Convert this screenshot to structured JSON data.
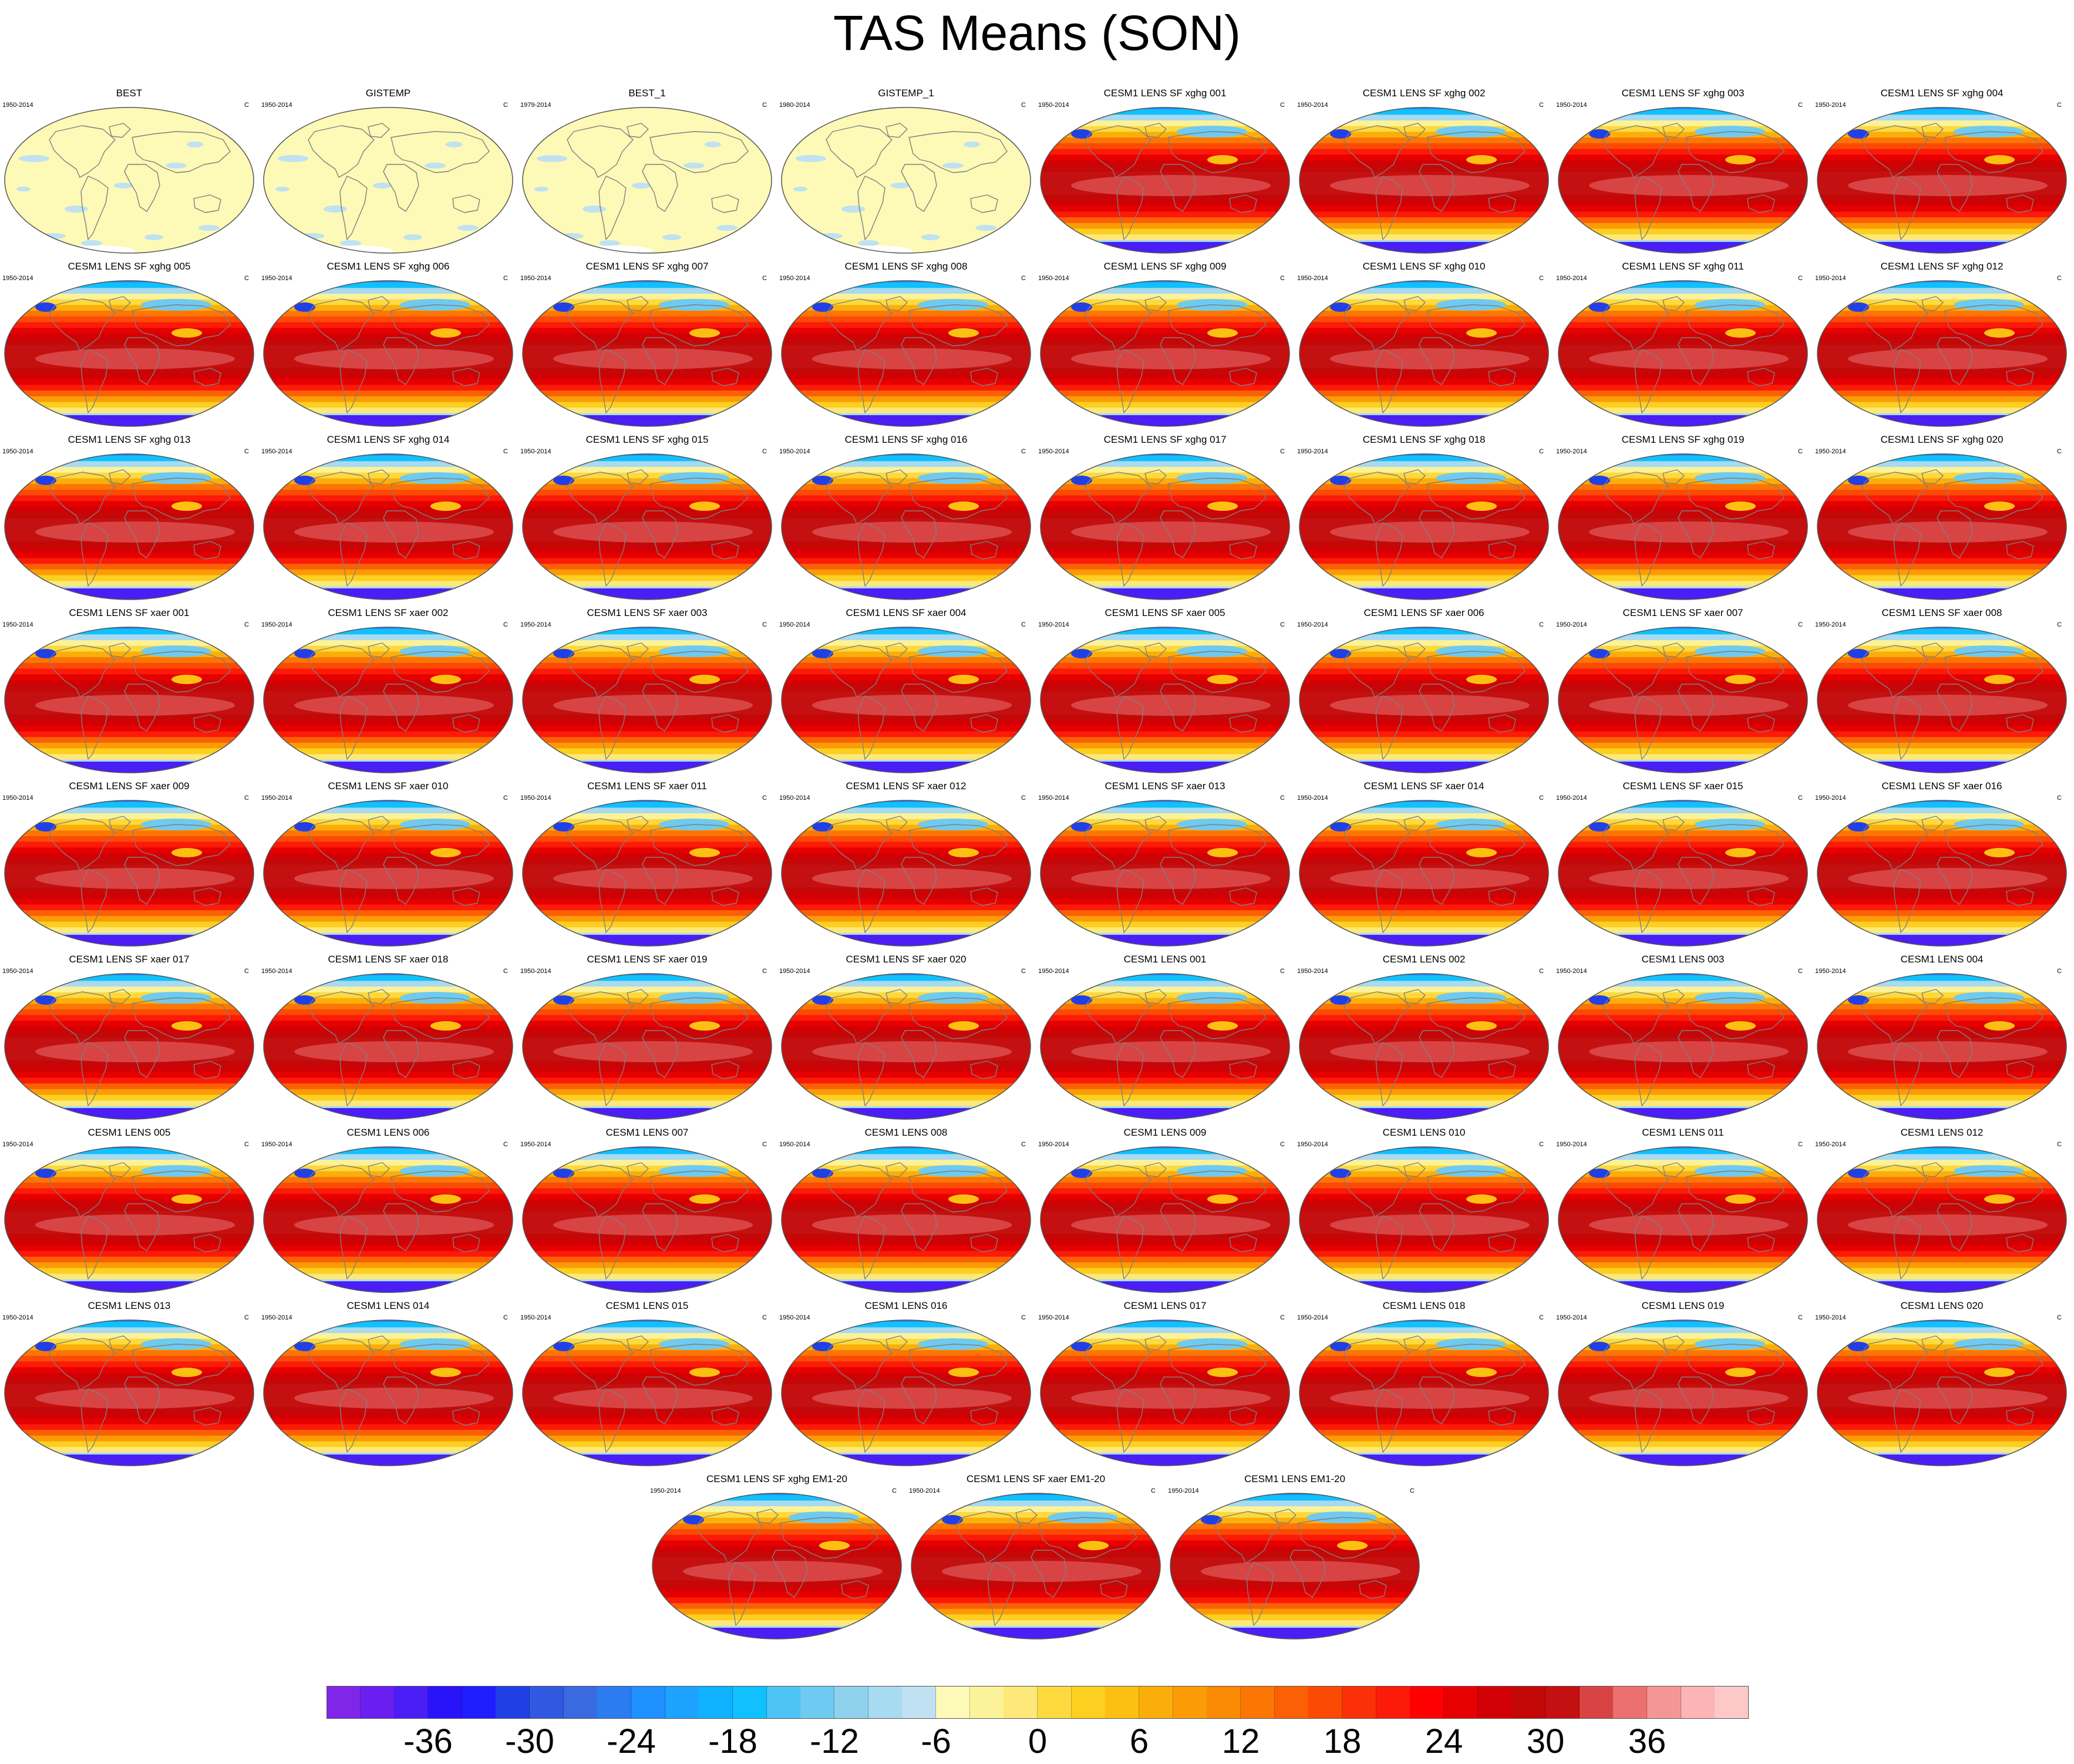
{
  "title": "TAS Means (SON)",
  "colors": {
    "obs_land": "#fdf9b6",
    "obs_hatch": "#bfe1f2",
    "coast": "#7f7f7f",
    "outline": "#555555"
  },
  "chart_data": {
    "type": "heatmap",
    "projection": "Robinson-like ellipse",
    "units": "C",
    "panels": [
      {
        "title": "BEST",
        "period": "1950-2014",
        "units": "C",
        "kind": "obs"
      },
      {
        "title": "GISTEMP",
        "period": "1950-2014",
        "units": "C",
        "kind": "obs"
      },
      {
        "title": "BEST_1",
        "period": "1979-2014",
        "units": "C",
        "kind": "obs"
      },
      {
        "title": "GISTEMP_1",
        "period": "1980-2014",
        "units": "C",
        "kind": "obs"
      },
      {
        "title": "CESM1 LENS SF xghg 001",
        "period": "1950-2014",
        "units": "C",
        "kind": "model"
      },
      {
        "title": "CESM1 LENS SF xghg 002",
        "period": "1950-2014",
        "units": "C",
        "kind": "model"
      },
      {
        "title": "CESM1 LENS SF xghg 003",
        "period": "1950-2014",
        "units": "C",
        "kind": "model"
      },
      {
        "title": "CESM1 LENS SF xghg 004",
        "period": "1950-2014",
        "units": "C",
        "kind": "model"
      },
      {
        "title": "CESM1 LENS SF xghg 005",
        "period": "1950-2014",
        "units": "C",
        "kind": "model"
      },
      {
        "title": "CESM1 LENS SF xghg 006",
        "period": "1950-2014",
        "units": "C",
        "kind": "model"
      },
      {
        "title": "CESM1 LENS SF xghg 007",
        "period": "1950-2014",
        "units": "C",
        "kind": "model"
      },
      {
        "title": "CESM1 LENS SF xghg 008",
        "period": "1950-2014",
        "units": "C",
        "kind": "model"
      },
      {
        "title": "CESM1 LENS SF xghg 009",
        "period": "1950-2014",
        "units": "C",
        "kind": "model"
      },
      {
        "title": "CESM1 LENS SF xghg 010",
        "period": "1950-2014",
        "units": "C",
        "kind": "model"
      },
      {
        "title": "CESM1 LENS SF xghg 011",
        "period": "1950-2014",
        "units": "C",
        "kind": "model"
      },
      {
        "title": "CESM1 LENS SF xghg 012",
        "period": "1950-2014",
        "units": "C",
        "kind": "model"
      },
      {
        "title": "CESM1 LENS SF xghg 013",
        "period": "1950-2014",
        "units": "C",
        "kind": "model"
      },
      {
        "title": "CESM1 LENS SF xghg 014",
        "period": "1950-2014",
        "units": "C",
        "kind": "model"
      },
      {
        "title": "CESM1 LENS SF xghg 015",
        "period": "1950-2014",
        "units": "C",
        "kind": "model"
      },
      {
        "title": "CESM1 LENS SF xghg 016",
        "period": "1950-2014",
        "units": "C",
        "kind": "model"
      },
      {
        "title": "CESM1 LENS SF xghg 017",
        "period": "1950-2014",
        "units": "C",
        "kind": "model"
      },
      {
        "title": "CESM1 LENS SF xghg 018",
        "period": "1950-2014",
        "units": "C",
        "kind": "model"
      },
      {
        "title": "CESM1 LENS SF xghg 019",
        "period": "1950-2014",
        "units": "C",
        "kind": "model"
      },
      {
        "title": "CESM1 LENS SF xghg 020",
        "period": "1950-2014",
        "units": "C",
        "kind": "model"
      },
      {
        "title": "CESM1 LENS SF xaer 001",
        "period": "1950-2014",
        "units": "C",
        "kind": "model"
      },
      {
        "title": "CESM1 LENS SF xaer 002",
        "period": "1950-2014",
        "units": "C",
        "kind": "model"
      },
      {
        "title": "CESM1 LENS SF xaer 003",
        "period": "1950-2014",
        "units": "C",
        "kind": "model"
      },
      {
        "title": "CESM1 LENS SF xaer 004",
        "period": "1950-2014",
        "units": "C",
        "kind": "model"
      },
      {
        "title": "CESM1 LENS SF xaer 005",
        "period": "1950-2014",
        "units": "C",
        "kind": "model"
      },
      {
        "title": "CESM1 LENS SF xaer 006",
        "period": "1950-2014",
        "units": "C",
        "kind": "model"
      },
      {
        "title": "CESM1 LENS SF xaer 007",
        "period": "1950-2014",
        "units": "C",
        "kind": "model"
      },
      {
        "title": "CESM1 LENS SF xaer 008",
        "period": "1950-2014",
        "units": "C",
        "kind": "model"
      },
      {
        "title": "CESM1 LENS SF xaer 009",
        "period": "1950-2014",
        "units": "C",
        "kind": "model"
      },
      {
        "title": "CESM1 LENS SF xaer 010",
        "period": "1950-2014",
        "units": "C",
        "kind": "model"
      },
      {
        "title": "CESM1 LENS SF xaer 011",
        "period": "1950-2014",
        "units": "C",
        "kind": "model"
      },
      {
        "title": "CESM1 LENS SF xaer 012",
        "period": "1950-2014",
        "units": "C",
        "kind": "model"
      },
      {
        "title": "CESM1 LENS SF xaer 013",
        "period": "1950-2014",
        "units": "C",
        "kind": "model"
      },
      {
        "title": "CESM1 LENS SF xaer 014",
        "period": "1950-2014",
        "units": "C",
        "kind": "model"
      },
      {
        "title": "CESM1 LENS SF xaer 015",
        "period": "1950-2014",
        "units": "C",
        "kind": "model"
      },
      {
        "title": "CESM1 LENS SF xaer 016",
        "period": "1950-2014",
        "units": "C",
        "kind": "model"
      },
      {
        "title": "CESM1 LENS SF xaer 017",
        "period": "1950-2014",
        "units": "C",
        "kind": "model"
      },
      {
        "title": "CESM1 LENS SF xaer 018",
        "period": "1950-2014",
        "units": "C",
        "kind": "model"
      },
      {
        "title": "CESM1 LENS SF xaer 019",
        "period": "1950-2014",
        "units": "C",
        "kind": "model"
      },
      {
        "title": "CESM1 LENS SF xaer 020",
        "period": "1950-2014",
        "units": "C",
        "kind": "model"
      },
      {
        "title": "CESM1 LENS 001",
        "period": "1950-2014",
        "units": "C",
        "kind": "model"
      },
      {
        "title": "CESM1 LENS 002",
        "period": "1950-2014",
        "units": "C",
        "kind": "model"
      },
      {
        "title": "CESM1 LENS 003",
        "period": "1950-2014",
        "units": "C",
        "kind": "model"
      },
      {
        "title": "CESM1 LENS 004",
        "period": "1950-2014",
        "units": "C",
        "kind": "model"
      },
      {
        "title": "CESM1 LENS 005",
        "period": "1950-2014",
        "units": "C",
        "kind": "model"
      },
      {
        "title": "CESM1 LENS 006",
        "period": "1950-2014",
        "units": "C",
        "kind": "model"
      },
      {
        "title": "CESM1 LENS 007",
        "period": "1950-2014",
        "units": "C",
        "kind": "model"
      },
      {
        "title": "CESM1 LENS 008",
        "period": "1950-2014",
        "units": "C",
        "kind": "model"
      },
      {
        "title": "CESM1 LENS 009",
        "period": "1950-2014",
        "units": "C",
        "kind": "model"
      },
      {
        "title": "CESM1 LENS 010",
        "period": "1950-2014",
        "units": "C",
        "kind": "model"
      },
      {
        "title": "CESM1 LENS 011",
        "period": "1950-2014",
        "units": "C",
        "kind": "model"
      },
      {
        "title": "CESM1 LENS 012",
        "period": "1950-2014",
        "units": "C",
        "kind": "model"
      },
      {
        "title": "CESM1 LENS 013",
        "period": "1950-2014",
        "units": "C",
        "kind": "model"
      },
      {
        "title": "CESM1 LENS 014",
        "period": "1950-2014",
        "units": "C",
        "kind": "model"
      },
      {
        "title": "CESM1 LENS 015",
        "period": "1950-2014",
        "units": "C",
        "kind": "model"
      },
      {
        "title": "CESM1 LENS 016",
        "period": "1950-2014",
        "units": "C",
        "kind": "model"
      },
      {
        "title": "CESM1 LENS 017",
        "period": "1950-2014",
        "units": "C",
        "kind": "model"
      },
      {
        "title": "CESM1 LENS 018",
        "period": "1950-2014",
        "units": "C",
        "kind": "model"
      },
      {
        "title": "CESM1 LENS 019",
        "period": "1950-2014",
        "units": "C",
        "kind": "model"
      },
      {
        "title": "CESM1 LENS 020",
        "period": "1950-2014",
        "units": "C",
        "kind": "model"
      },
      {
        "title": "CESM1 LENS SF xghg EM1-20",
        "period": "1950-2014",
        "units": "C",
        "kind": "model"
      },
      {
        "title": "CESM1 LENS SF xaer EM1-20",
        "period": "1950-2014",
        "units": "C",
        "kind": "model"
      },
      {
        "title": "CESM1 LENS EM1-20",
        "period": "1950-2014",
        "units": "C",
        "kind": "model"
      }
    ],
    "colorbar": {
      "min": -42,
      "max": 42,
      "step": 2,
      "ticks": [
        "-36",
        "-30",
        "-24",
        "-18",
        "-12",
        "-6",
        "0",
        "6",
        "12",
        "18",
        "24",
        "30",
        "36"
      ],
      "colors": [
        "#7f26e8",
        "#6a1ef0",
        "#4a1ef5",
        "#2914fa",
        "#1e1eff",
        "#2040e6",
        "#3058e0",
        "#3a6ae0",
        "#2a7cf0",
        "#1e90ff",
        "#1ea2ff",
        "#10b2ff",
        "#10c0ff",
        "#4cc4f4",
        "#6ecaf0",
        "#90d2ee",
        "#a8daf0",
        "#bfe1f2",
        "#fdf9b6",
        "#fcf29a",
        "#fde87a",
        "#fdd93e",
        "#fccf20",
        "#fcc012",
        "#fbae0a",
        "#fb9c06",
        "#fb8a04",
        "#fb7604",
        "#fb6004",
        "#fb4a04",
        "#fb3008",
        "#fc1a08",
        "#ff0000",
        "#e60000",
        "#d10004",
        "#c40808",
        "#c41010",
        "#d84444",
        "#ec7070",
        "#f59696",
        "#fcb4b4",
        "#fdc8c8"
      ]
    }
  }
}
